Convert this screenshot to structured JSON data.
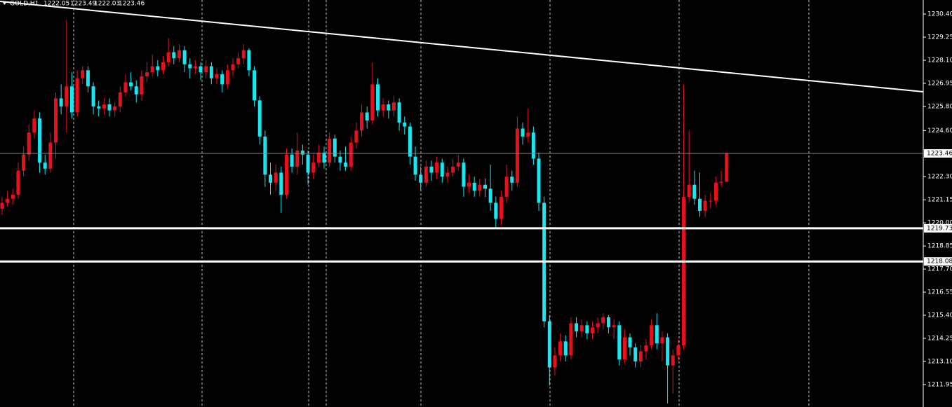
{
  "chart_data": {
    "type": "candlestick",
    "symbol": "GOLD,H1",
    "up_color": "#e8101c",
    "down_color": "#18e6f0",
    "ylim": [
      1210.83,
      1231.1
    ],
    "yticks": [
      {
        "value": 1230.4,
        "label": "1230.40"
      },
      {
        "value": 1229.25,
        "label": "1229.25"
      },
      {
        "value": 1228.1,
        "label": "1228.10"
      },
      {
        "value": 1226.95,
        "label": "1226.95"
      },
      {
        "value": 1225.8,
        "label": "1225.80"
      },
      {
        "value": 1224.6,
        "label": "1224.60"
      },
      {
        "value": 1222.3,
        "label": "1222.30"
      },
      {
        "value": 1221.15,
        "label": "1221.15"
      },
      {
        "value": 1220,
        "label": "1220.00"
      },
      {
        "value": 1218.85,
        "label": "1218.85"
      },
      {
        "value": 1217.7,
        "label": "1217.70"
      },
      {
        "value": 1216.55,
        "label": "1216.55"
      },
      {
        "value": 1215.4,
        "label": "1215.40"
      },
      {
        "value": 1214.25,
        "label": "1214.25"
      },
      {
        "value": 1213.1,
        "label": "1213.10"
      },
      {
        "value": 1211.95,
        "label": "1211.95"
      }
    ],
    "hlines": [
      1219.73,
      1218.08
    ],
    "trendline": {
      "start": 1231.03,
      "end": 1226.53
    },
    "series": {
      "open": [
        1220.7,
        1221.0,
        1221.2,
        1221.4,
        1222.6,
        1223.4,
        1224.5,
        1225.2,
        1223.0,
        1222.7,
        1224.0,
        1226.2,
        1225.8,
        1226.8,
        1225.5,
        1227.2,
        1227.6,
        1226.8,
        1225.8,
        1225.7,
        1225.9,
        1225.6,
        1225.8,
        1226.5,
        1227.0,
        1226.8,
        1226.4,
        1227.3,
        1227.5,
        1227.8,
        1227.6,
        1228.0,
        1228.5,
        1228.2,
        1228.6,
        1227.9,
        1227.7,
        1227.8,
        1227.5,
        1227.8,
        1227.2,
        1227.4,
        1226.9,
        1227.6,
        1227.9,
        1228.2,
        1228.6,
        1227.6,
        1226.1,
        1224.3,
        1222.4,
        1222.0,
        1222.5,
        1221.4,
        1223.4,
        1222.8,
        1223.6,
        1223.4,
        1222.5,
        1223.0,
        1223.5,
        1223.0,
        1224.2,
        1223.3,
        1223.0,
        1222.8,
        1224.0,
        1224.6,
        1225.5,
        1225.1,
        1226.9,
        1225.6,
        1225.9,
        1225.6,
        1226.0,
        1225.0,
        1224.8,
        1223.3,
        1222.4,
        1222.0,
        1222.8,
        1222.5,
        1223.0,
        1222.3,
        1222.5,
        1222.8,
        1223.0,
        1221.8,
        1222.0,
        1221.6,
        1221.9,
        1221.7,
        1221.0,
        1220.2,
        1221.3,
        1222.3,
        1222.0,
        1224.7,
        1224.3,
        1224.5,
        1223.2,
        1221.0,
        1215.1,
        1212.8,
        1213.4,
        1214.1,
        1213.4,
        1215.0,
        1214.6,
        1214.9,
        1214.5,
        1214.8,
        1215.0,
        1215.3,
        1214.8,
        1214.9,
        1213.2,
        1214.3,
        1213.8,
        1213.1,
        1213.6,
        1213.9,
        1214.9,
        1214.0,
        1214.3,
        1212.9,
        1213.4,
        1213.9,
        1221.3,
        1221.9,
        1221.2,
        1220.6,
        1221.1,
        1221.1,
        1222.0,
        1222.05
      ],
      "high": [
        1221.3,
        1221.6,
        1221.7,
        1223.0,
        1223.8,
        1224.9,
        1225.6,
        1225.5,
        1223.4,
        1224.5,
        1226.5,
        1226.9,
        1230.1,
        1227.5,
        1227.6,
        1227.8,
        1227.8,
        1227.0,
        1226.1,
        1226.2,
        1226.2,
        1226.0,
        1226.8,
        1227.4,
        1227.5,
        1227.1,
        1227.6,
        1228.0,
        1228.4,
        1228.1,
        1228.3,
        1229.2,
        1228.8,
        1228.9,
        1228.8,
        1228.2,
        1228.1,
        1228.0,
        1228.1,
        1228.0,
        1227.7,
        1227.6,
        1227.9,
        1228.2,
        1228.5,
        1228.9,
        1228.7,
        1227.8,
        1226.3,
        1224.6,
        1223.0,
        1222.9,
        1222.8,
        1223.7,
        1223.7,
        1224.5,
        1223.9,
        1223.6,
        1223.4,
        1223.9,
        1223.8,
        1224.5,
        1224.4,
        1223.6,
        1223.8,
        1224.3,
        1225.0,
        1225.9,
        1225.8,
        1228.0,
        1227.2,
        1226.2,
        1226.1,
        1226.3,
        1226.2,
        1225.3,
        1225.0,
        1223.8,
        1222.8,
        1223.1,
        1223.1,
        1223.3,
        1223.2,
        1222.8,
        1223.2,
        1223.4,
        1223.2,
        1222.4,
        1222.3,
        1222.2,
        1222.2,
        1222.9,
        1221.3,
        1221.6,
        1222.9,
        1222.6,
        1225.3,
        1225.0,
        1225.7,
        1224.8,
        1223.5,
        1221.3,
        1215.4,
        1213.8,
        1214.5,
        1214.4,
        1215.3,
        1215.3,
        1215.2,
        1215.1,
        1215.1,
        1215.3,
        1215.5,
        1215.4,
        1215.2,
        1215.1,
        1214.7,
        1214.5,
        1214.0,
        1213.9,
        1214.2,
        1215.2,
        1215.5,
        1214.6,
        1214.5,
        1213.7,
        1214.2,
        1226.9,
        1224.6,
        1222.6,
        1222.5,
        1221.4,
        1221.5,
        1222.3,
        1222.6,
        1223.49
      ],
      "low": [
        1220.4,
        1220.8,
        1220.9,
        1221.2,
        1222.3,
        1223.1,
        1224.2,
        1222.5,
        1222.4,
        1222.5,
        1223.2,
        1225.4,
        1224.5,
        1225.2,
        1225.3,
        1226.9,
        1226.5,
        1225.4,
        1225.3,
        1225.4,
        1225.3,
        1225.3,
        1225.5,
        1226.3,
        1226.6,
        1226.0,
        1226.1,
        1227.0,
        1227.3,
        1227.3,
        1227.4,
        1227.8,
        1227.9,
        1228.0,
        1227.5,
        1227.2,
        1227.4,
        1227.1,
        1227.2,
        1226.9,
        1226.9,
        1226.5,
        1226.7,
        1227.3,
        1227.7,
        1227.9,
        1227.3,
        1225.8,
        1223.9,
        1221.8,
        1221.4,
        1221.6,
        1220.5,
        1221.2,
        1222.5,
        1222.4,
        1222.9,
        1221.9,
        1222.2,
        1222.8,
        1222.7,
        1222.8,
        1223.0,
        1222.6,
        1222.6,
        1222.6,
        1223.7,
        1224.3,
        1224.7,
        1224.9,
        1225.3,
        1225.3,
        1225.2,
        1225.3,
        1224.6,
        1224.4,
        1222.9,
        1222.1,
        1221.6,
        1221.8,
        1222.1,
        1222.2,
        1222.0,
        1222.0,
        1222.3,
        1222.6,
        1221.3,
        1221.5,
        1221.3,
        1221.3,
        1221.3,
        1220.6,
        1219.7,
        1219.9,
        1221.0,
        1221.6,
        1221.8,
        1223.9,
        1224.0,
        1222.9,
        1220.6,
        1214.8,
        1211.9,
        1212.4,
        1213.1,
        1213.1,
        1213.2,
        1214.3,
        1214.3,
        1214.2,
        1214.2,
        1214.5,
        1214.7,
        1214.5,
        1214.2,
        1212.9,
        1213.0,
        1213.4,
        1212.8,
        1212.8,
        1213.2,
        1213.7,
        1213.7,
        1213.1,
        1211.0,
        1211.5,
        1213.1,
        1213.7,
        1221.0,
        1220.9,
        1220.3,
        1220.3,
        1220.7,
        1220.9,
        1221.8,
        1222.03
      ],
      "close": [
        1221.0,
        1221.2,
        1221.4,
        1222.6,
        1223.4,
        1224.5,
        1225.2,
        1223.0,
        1222.7,
        1224.0,
        1226.2,
        1225.8,
        1226.8,
        1225.5,
        1227.2,
        1227.6,
        1226.8,
        1225.8,
        1225.7,
        1225.9,
        1225.6,
        1225.8,
        1226.5,
        1227.0,
        1226.8,
        1226.4,
        1227.3,
        1227.5,
        1227.8,
        1227.6,
        1228.0,
        1228.5,
        1228.2,
        1228.6,
        1227.9,
        1227.7,
        1227.8,
        1227.5,
        1227.8,
        1227.2,
        1227.4,
        1226.9,
        1227.6,
        1227.9,
        1228.2,
        1228.6,
        1227.6,
        1226.1,
        1224.3,
        1222.4,
        1222.0,
        1222.5,
        1221.4,
        1223.4,
        1222.8,
        1223.6,
        1223.4,
        1222.5,
        1223.0,
        1223.5,
        1223.0,
        1224.2,
        1223.3,
        1223.0,
        1222.8,
        1224.0,
        1224.6,
        1225.5,
        1225.1,
        1226.9,
        1225.6,
        1225.9,
        1225.6,
        1226.0,
        1225.0,
        1224.8,
        1223.3,
        1222.4,
        1222.0,
        1222.8,
        1222.5,
        1223.0,
        1222.3,
        1222.5,
        1222.8,
        1223.0,
        1221.8,
        1222.0,
        1221.6,
        1221.9,
        1221.7,
        1221.0,
        1220.2,
        1221.3,
        1222.3,
        1222.0,
        1224.7,
        1224.3,
        1224.5,
        1223.2,
        1221.0,
        1215.1,
        1212.8,
        1213.4,
        1214.1,
        1213.4,
        1215.0,
        1214.6,
        1214.9,
        1214.5,
        1214.8,
        1215.0,
        1215.3,
        1214.8,
        1214.9,
        1213.2,
        1214.3,
        1213.8,
        1213.1,
        1213.6,
        1213.9,
        1214.9,
        1214.0,
        1214.3,
        1212.9,
        1213.4,
        1213.9,
        1221.3,
        1221.9,
        1221.2,
        1220.6,
        1221.1,
        1221.1,
        1222.0,
        1222.05,
        1223.46
      ]
    }
  }
}
